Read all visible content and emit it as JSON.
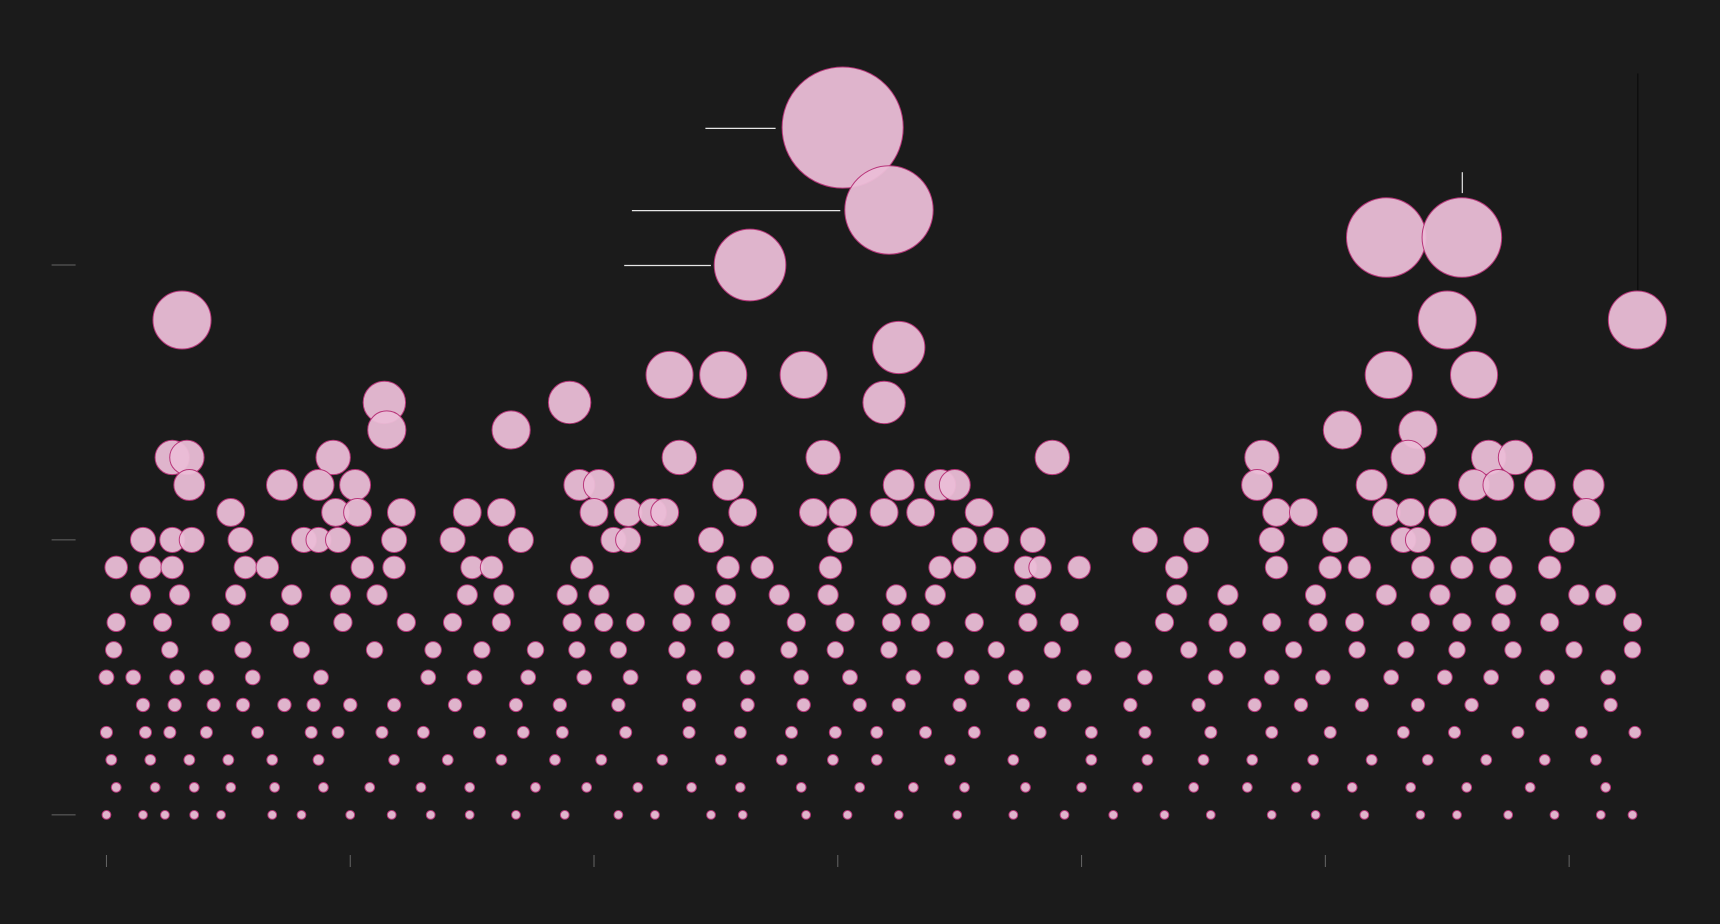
{
  "chart_data": {
    "type": "scatter",
    "color": "#eabdd6",
    "edgecolor": "#b8357a",
    "grid": false,
    "xlim": [
      -2.25,
      63.9
    ],
    "ylim": [
      -1.5,
      27.5
    ],
    "xticks": [
      0,
      10,
      20,
      30,
      40,
      50,
      60
    ],
    "yticks": [
      0,
      10,
      20
    ],
    "x": [
      30.2,
      32.1,
      52.5,
      55.6,
      26.4,
      3.1,
      55.0,
      62.8,
      32.5,
      23.1,
      25.3,
      28.6,
      52.6,
      56.1,
      11.4,
      19.0,
      31.9,
      11.5,
      16.6,
      50.7,
      53.8,
      2.7,
      3.3,
      9.3,
      23.5,
      29.4,
      38.8,
      47.4,
      53.4,
      56.7,
      57.8,
      3.4,
      7.2,
      8.7,
      10.2,
      19.4,
      20.2,
      25.5,
      32.5,
      34.2,
      34.8,
      47.2,
      51.9,
      56.1,
      57.1,
      58.8,
      60.8,
      5.1,
      9.4,
      10.3,
      12.1,
      14.8,
      16.2,
      20.0,
      21.4,
      22.4,
      22.9,
      26.1,
      29.0,
      30.2,
      31.9,
      33.4,
      35.8,
      48.0,
      49.1,
      52.5,
      53.5,
      54.8,
      60.7,
      1.5,
      2.7,
      3.5,
      5.5,
      8.1,
      8.7,
      9.5,
      11.8,
      14.2,
      17.0,
      20.8,
      21.4,
      24.8,
      30.1,
      35.2,
      36.5,
      38.0,
      42.6,
      44.7,
      47.8,
      50.4,
      53.2,
      53.8,
      56.5,
      59.7,
      0.4,
      1.8,
      2.7,
      5.7,
      6.6,
      10.5,
      11.8,
      15.0,
      15.8,
      19.5,
      25.5,
      26.9,
      29.7,
      34.2,
      35.2,
      37.7,
      38.3,
      39.9,
      43.9,
      48.0,
      50.2,
      51.4,
      54.0,
      55.6,
      57.2,
      59.2,
      1.4,
      3.0,
      5.3,
      7.6,
      9.6,
      11.1,
      14.8,
      16.3,
      18.9,
      20.2,
      23.7,
      25.4,
      27.6,
      29.6,
      32.4,
      34.0,
      37.7,
      43.9,
      46.0,
      49.6,
      52.5,
      54.7,
      57.4,
      60.4,
      61.5,
      0.4,
      2.3,
      4.7,
      7.1,
      9.7,
      12.3,
      14.2,
      16.2,
      19.1,
      20.4,
      21.7,
      23.6,
      25.2,
      28.3,
      30.3,
      32.2,
      33.4,
      35.6,
      37.8,
      39.5,
      43.4,
      45.6,
      47.8,
      49.7,
      51.2,
      53.9,
      55.6,
      57.2,
      59.2,
      62.6,
      0.3,
      2.6,
      5.6,
      8.0,
      11.0,
      13.4,
      15.4,
      17.6,
      19.3,
      21.0,
      23.4,
      25.4,
      28.0,
      29.9,
      32.1,
      34.4,
      36.5,
      38.8,
      41.7,
      44.4,
      46.4,
      48.7,
      51.3,
      53.3,
      55.4,
      57.7,
      60.2,
      62.6,
      0.0,
      1.1,
      2.9,
      4.1,
      6.0,
      8.8,
      13.2,
      15.1,
      17.3,
      19.6,
      21.5,
      24.1,
      26.3,
      28.5,
      30.5,
      33.1,
      35.5,
      37.3,
      40.1,
      42.6,
      45.5,
      47.8,
      49.9,
      52.7,
      54.9,
      56.8,
      59.1,
      61.6,
      1.5,
      2.8,
      4.4,
      5.6,
      7.3,
      8.5,
      10.0,
      11.8,
      14.3,
      16.8,
      18.6,
      21.0,
      23.9,
      26.3,
      28.6,
      30.9,
      32.5,
      35.0,
      37.6,
      39.3,
      42.0,
      44.8,
      47.1,
      49.0,
      51.5,
      53.8,
      56.0,
      58.9,
      61.7,
      0.0,
      1.6,
      2.6,
      4.1,
      6.2,
      8.4,
      9.5,
      11.3,
      13.0,
      15.3,
      17.1,
      18.7,
      21.3,
      23.9,
      26.0,
      28.1,
      29.9,
      31.6,
      33.6,
      35.6,
      38.3,
      40.4,
      42.6,
      45.3,
      47.8,
      50.2,
      53.2,
      55.3,
      57.9,
      60.5,
      62.7,
      0.2,
      1.8,
      3.4,
      5.0,
      6.8,
      8.7,
      11.8,
      14.0,
      16.2,
      18.4,
      20.3,
      22.8,
      25.2,
      27.7,
      29.8,
      31.6,
      34.6,
      37.2,
      40.4,
      42.7,
      45.0,
      47.0,
      49.5,
      51.9,
      54.2,
      56.6,
      59.0,
      61.1,
      0.4,
      2.0,
      3.6,
      5.1,
      6.9,
      8.9,
      10.8,
      12.9,
      14.9,
      17.6,
      19.7,
      21.8,
      24.0,
      26.0,
      28.5,
      30.9,
      33.1,
      35.2,
      37.7,
      40.0,
      42.3,
      44.6,
      46.8,
      48.8,
      51.1,
      53.5,
      55.8,
      58.4,
      61.5,
      0.0,
      1.5,
      2.4,
      3.6,
      4.7,
      6.8,
      8.0,
      10.0,
      11.7,
      13.3,
      14.9,
      16.8,
      18.8,
      21.0,
      22.5,
      24.8,
      26.1,
      28.7,
      30.4,
      32.5,
      34.9,
      37.2,
      39.3,
      41.3,
      43.4,
      45.3,
      47.8,
      49.6,
      51.6,
      53.9,
      55.4,
      57.5,
      59.4,
      61.3,
      62.6
    ],
    "values": [
      25,
      22,
      21,
      21,
      20,
      18,
      18,
      18,
      17,
      16,
      16,
      16,
      16,
      16,
      15,
      15,
      15,
      14,
      14,
      14,
      14,
      13,
      13,
      13,
      13,
      13,
      13,
      13,
      13,
      13,
      13,
      12,
      12,
      12,
      12,
      12,
      12,
      12,
      12,
      12,
      12,
      12,
      12,
      12,
      12,
      12,
      12,
      11,
      11,
      11,
      11,
      11,
      11,
      11,
      11,
      11,
      11,
      11,
      11,
      11,
      11,
      11,
      11,
      11,
      11,
      11,
      11,
      11,
      11,
      10,
      10,
      10,
      10,
      10,
      10,
      10,
      10,
      10,
      10,
      10,
      10,
      10,
      10,
      10,
      10,
      10,
      10,
      10,
      10,
      10,
      10,
      10,
      10,
      10,
      9,
      9,
      9,
      9,
      9,
      9,
      9,
      9,
      9,
      9,
      9,
      9,
      9,
      9,
      9,
      9,
      9,
      9,
      9,
      9,
      9,
      9,
      9,
      9,
      9,
      9,
      8,
      8,
      8,
      8,
      8,
      8,
      8,
      8,
      8,
      8,
      8,
      8,
      8,
      8,
      8,
      8,
      8,
      8,
      8,
      8,
      8,
      8,
      8,
      8,
      8,
      7,
      7,
      7,
      7,
      7,
      7,
      7,
      7,
      7,
      7,
      7,
      7,
      7,
      7,
      7,
      7,
      7,
      7,
      7,
      7,
      7,
      7,
      7,
      7,
      7,
      7,
      7,
      7,
      7,
      7,
      6,
      6,
      6,
      6,
      6,
      6,
      6,
      6,
      6,
      6,
      6,
      6,
      6,
      6,
      6,
      6,
      6,
      6,
      6,
      6,
      6,
      6,
      6,
      6,
      6,
      6,
      6,
      6,
      5,
      5,
      5,
      5,
      5,
      5,
      5,
      5,
      5,
      5,
      5,
      5,
      5,
      5,
      5,
      5,
      5,
      5,
      5,
      5,
      5,
      5,
      5,
      5,
      5,
      5,
      5,
      5,
      4,
      4,
      4,
      4,
      4,
      4,
      4,
      4,
      4,
      4,
      4,
      4,
      4,
      4,
      4,
      4,
      4,
      4,
      4,
      4,
      4,
      4,
      4,
      4,
      4,
      4,
      4,
      4,
      4,
      3,
      3,
      3,
      3,
      3,
      3,
      3,
      3,
      3,
      3,
      3,
      3,
      3,
      3,
      3,
      3,
      3,
      3,
      3,
      3,
      3,
      3,
      3,
      3,
      3,
      3,
      3,
      3,
      3,
      3,
      3,
      2,
      2,
      2,
      2,
      2,
      2,
      2,
      2,
      2,
      2,
      2,
      2,
      2,
      2,
      2,
      2,
      2,
      2,
      2,
      2,
      2,
      2,
      2,
      2,
      2,
      2,
      2,
      2,
      1,
      1,
      1,
      1,
      1,
      1,
      1,
      1,
      1,
      1,
      1,
      1,
      1,
      1,
      1,
      1,
      1,
      1,
      1,
      1,
      1,
      1,
      1,
      1,
      1,
      1,
      1,
      1,
      1,
      0,
      0,
      0,
      0,
      0,
      0,
      0,
      0,
      0,
      0,
      0,
      0,
      0,
      0,
      0,
      0,
      0,
      0,
      0,
      0,
      0,
      0,
      0,
      0,
      0,
      0,
      0,
      0,
      0,
      0,
      0,
      0,
      0,
      0,
      0
    ]
  }
}
